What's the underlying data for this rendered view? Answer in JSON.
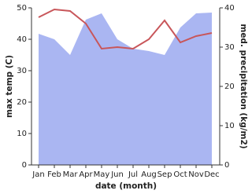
{
  "chart_data": {
    "type": "line-area",
    "xlabel": "date (month)",
    "ylabel": "max temp (C)",
    "y2label": "med. precipitation (kg/m2)",
    "categories": [
      "Jan",
      "Feb",
      "Mar",
      "Apr",
      "May",
      "Jun",
      "Jul",
      "Aug",
      "Sep",
      "Oct",
      "Nov",
      "Dec"
    ],
    "series": [
      {
        "name": "max temp",
        "color": "#c8565a",
        "values": [
          47,
          49.5,
          49,
          45,
          37,
          37.5,
          37,
          40,
          46,
          39,
          41,
          42
        ]
      },
      {
        "name": "med. precipitation",
        "color": "#aab6f2",
        "axis": "y2",
        "values": [
          33.4,
          32,
          28,
          37,
          38.6,
          32,
          29.6,
          29,
          28,
          35,
          38.6,
          38.8
        ]
      }
    ],
    "ylim": [
      0,
      50
    ],
    "yticks": [
      0,
      10,
      20,
      30,
      40,
      50
    ],
    "y2lim": [
      0,
      40
    ],
    "y2ticks": [
      0,
      10,
      20,
      30,
      40
    ]
  }
}
